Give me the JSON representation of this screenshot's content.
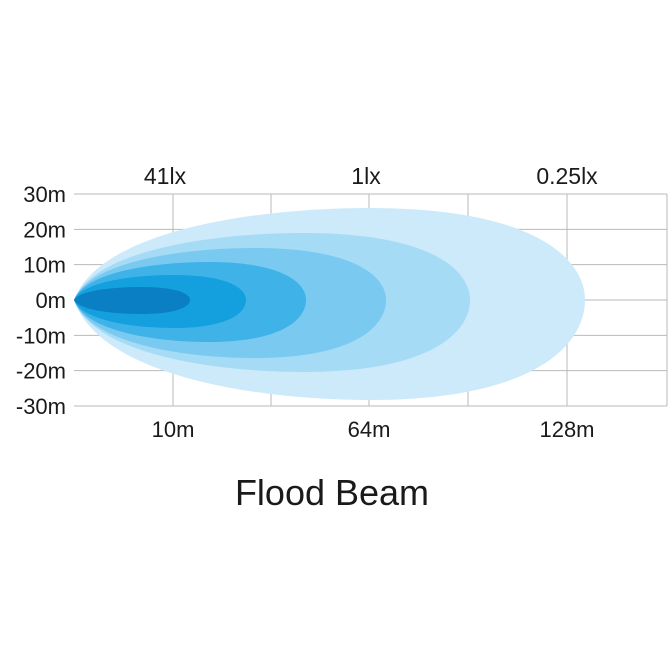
{
  "chart_data": {
    "type": "area",
    "title": "Flood Beam",
    "xlabel": "",
    "ylabel": "",
    "y_ticks": [
      "30m",
      "20m",
      "10m",
      "0m",
      "-10m",
      "-20m",
      "-30m"
    ],
    "y_tick_values": [
      30,
      20,
      10,
      0,
      -10,
      -20,
      -30
    ],
    "ylim": [
      -30,
      30
    ],
    "x_ticks": [
      "10m",
      "64m",
      "128m"
    ],
    "lux_labels": [
      "41lx",
      "1lx",
      "0.25lx"
    ],
    "grid": true,
    "series": [
      {
        "color": "#cdeafb",
        "note_index": 0
      },
      {
        "color": "#a6dbf6"
      },
      {
        "color": "#79c9f0"
      },
      {
        "color": "#3fb2e8"
      },
      {
        "color": "#14a0de"
      },
      {
        "color": "#0a7fc4"
      }
    ]
  }
}
